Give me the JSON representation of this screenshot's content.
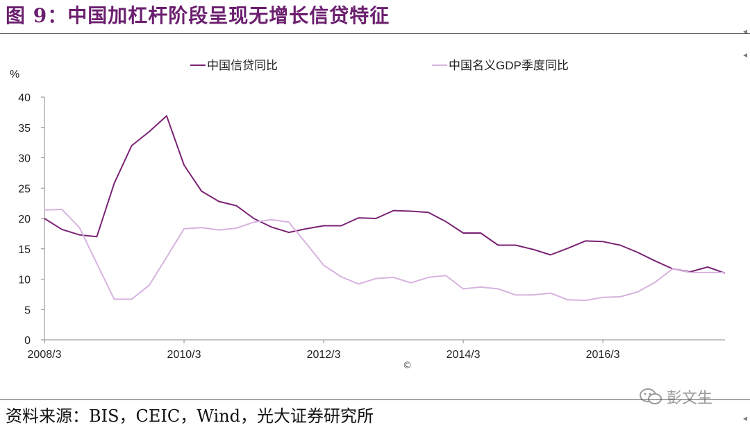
{
  "figure": {
    "title": "图 9：中国加杠杆阶段呈现无增长信贷特征",
    "source": "资料来源：BIS，CEIC，Wind，光大证券研究所",
    "watermark": "彭文生",
    "copyright_symbol": "©"
  },
  "chart_data": {
    "type": "line",
    "title": "",
    "xlabel": "",
    "ylabel": "%",
    "ylim": [
      0,
      40
    ],
    "yticks": [
      0,
      5,
      10,
      15,
      20,
      25,
      30,
      35,
      40
    ],
    "xtick_labels": [
      "2008/3",
      "2010/3",
      "2012/3",
      "2014/3",
      "2016/3"
    ],
    "xtick_indices": [
      0,
      8,
      16,
      24,
      32
    ],
    "x_count": 40,
    "legend_position": "top",
    "series": [
      {
        "name": "中国信贷同比",
        "color": "#7a2274",
        "values": [
          20.0,
          18.2,
          17.3,
          17.0,
          25.8,
          32.0,
          34.3,
          36.9,
          28.8,
          24.5,
          22.8,
          22.1,
          20.0,
          18.6,
          17.7,
          18.3,
          18.8,
          18.8,
          20.1,
          20.0,
          21.3,
          21.2,
          21.0,
          19.5,
          17.6,
          17.6,
          15.6,
          15.6,
          14.9,
          14.0,
          15.1,
          16.3,
          16.2,
          15.6,
          14.4,
          13.0,
          11.7,
          11.2,
          12.0,
          11.0
        ]
      },
      {
        "name": "中国名义GDP季度同比",
        "color": "#d7b3df",
        "values": [
          21.4,
          21.5,
          18.5,
          12.6,
          6.7,
          6.7,
          9.0,
          13.6,
          18.3,
          18.5,
          18.1,
          18.4,
          19.4,
          19.8,
          19.4,
          15.9,
          12.3,
          10.4,
          9.2,
          10.1,
          10.3,
          9.4,
          10.3,
          10.6,
          8.4,
          8.7,
          8.4,
          7.4,
          7.4,
          7.7,
          6.6,
          6.5,
          7.0,
          7.1,
          7.9,
          9.5,
          11.7,
          11.1,
          11.1,
          11.1
        ]
      }
    ]
  }
}
